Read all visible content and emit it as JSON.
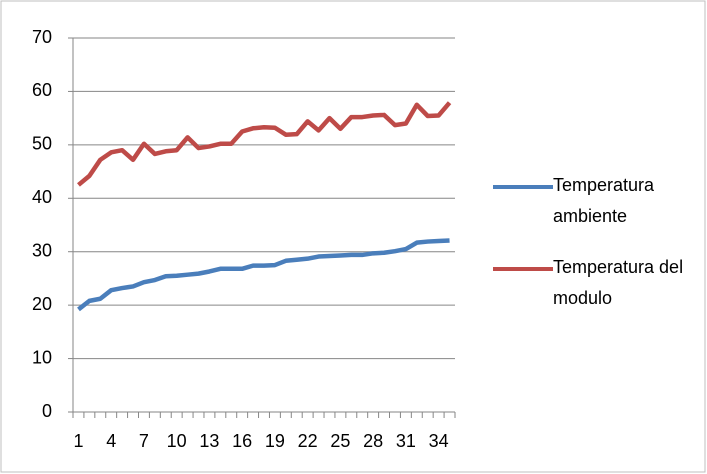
{
  "chart_data": {
    "type": "line",
    "categories": [
      "1",
      null,
      null,
      "4",
      null,
      null,
      "7",
      null,
      null,
      "10",
      null,
      null,
      "13",
      null,
      null,
      "16",
      null,
      null,
      "19",
      null,
      null,
      "22",
      null,
      null,
      "25",
      null,
      null,
      "28",
      null,
      null,
      "31",
      null,
      null,
      "34",
      null
    ],
    "series": [
      {
        "name": "Temperatura ambiente",
        "color": "#4a7ebb",
        "values": [
          19.2,
          20.8,
          21.2,
          22.8,
          23.2,
          23.5,
          24.3,
          24.7,
          25.4,
          25.5,
          25.7,
          25.9,
          26.3,
          26.8,
          26.8,
          26.8,
          27.4,
          27.4,
          27.5,
          28.3,
          28.5,
          28.7,
          29.1,
          29.2,
          29.3,
          29.4,
          29.4,
          29.7,
          29.8,
          30.1,
          30.5,
          31.7,
          31.9,
          32.0,
          32.1
        ]
      },
      {
        "name": "Temperatura del modulo",
        "color": "#be4b48",
        "values": [
          42.5,
          44.2,
          47.2,
          48.6,
          49.0,
          47.2,
          50.2,
          48.3,
          48.8,
          49.0,
          51.4,
          49.4,
          49.7,
          50.2,
          50.2,
          52.5,
          53.1,
          53.3,
          53.2,
          51.9,
          52.0,
          54.4,
          52.7,
          55.0,
          53.0,
          55.2,
          55.2,
          55.5,
          55.6,
          53.7,
          54.0,
          57.5,
          55.4,
          55.5,
          57.9
        ]
      }
    ],
    "ylim": [
      0,
      70
    ],
    "yticks": [
      0,
      10,
      20,
      30,
      40,
      50,
      60,
      70
    ],
    "grid": true,
    "legend": "right"
  }
}
